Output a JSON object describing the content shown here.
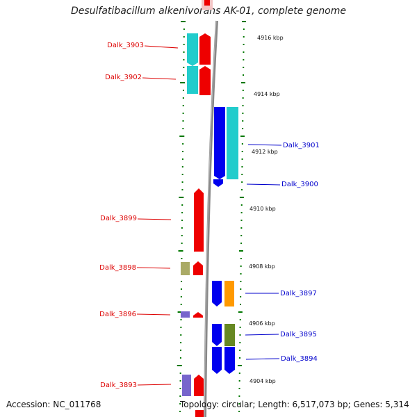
{
  "title": "Desulfatibacillum alkenivorans AK-01, complete genome",
  "footer": {
    "accession": "Accession: NC_011768",
    "topology": "Topology: circular; Length: 6,517,073 bp; Genes: 5,314"
  },
  "colors": {
    "minus_strand_label": "#dd0000",
    "plus_strand_label": "#0000cc",
    "red_gene": "#ee0000",
    "cyan_gene": "#22cccc",
    "blue_gene": "#0000ee",
    "orange_gene": "#ff9900",
    "olive_gene": "#668822",
    "khaki_gene": "#aaaa66",
    "purple_gene": "#7766cc",
    "tick_green": "#007700",
    "backbone_gray": "#888888"
  },
  "scale_labels": [
    "4916 kbp",
    "4914 kbp",
    "4912 kbp",
    "4910 kbp",
    "4908 kbp",
    "4906 kbp",
    "4904 kbp"
  ],
  "genes": [
    {
      "name": "Dalk_3903",
      "strand": "minus"
    },
    {
      "name": "Dalk_3902",
      "strand": "minus"
    },
    {
      "name": "Dalk_3901",
      "strand": "plus"
    },
    {
      "name": "Dalk_3900",
      "strand": "plus"
    },
    {
      "name": "Dalk_3899",
      "strand": "minus"
    },
    {
      "name": "Dalk_3898",
      "strand": "minus"
    },
    {
      "name": "Dalk_3897",
      "strand": "plus"
    },
    {
      "name": "Dalk_3896",
      "strand": "minus"
    },
    {
      "name": "Dalk_3895",
      "strand": "plus"
    },
    {
      "name": "Dalk_3894",
      "strand": "plus"
    },
    {
      "name": "Dalk_3893",
      "strand": "minus"
    }
  ]
}
